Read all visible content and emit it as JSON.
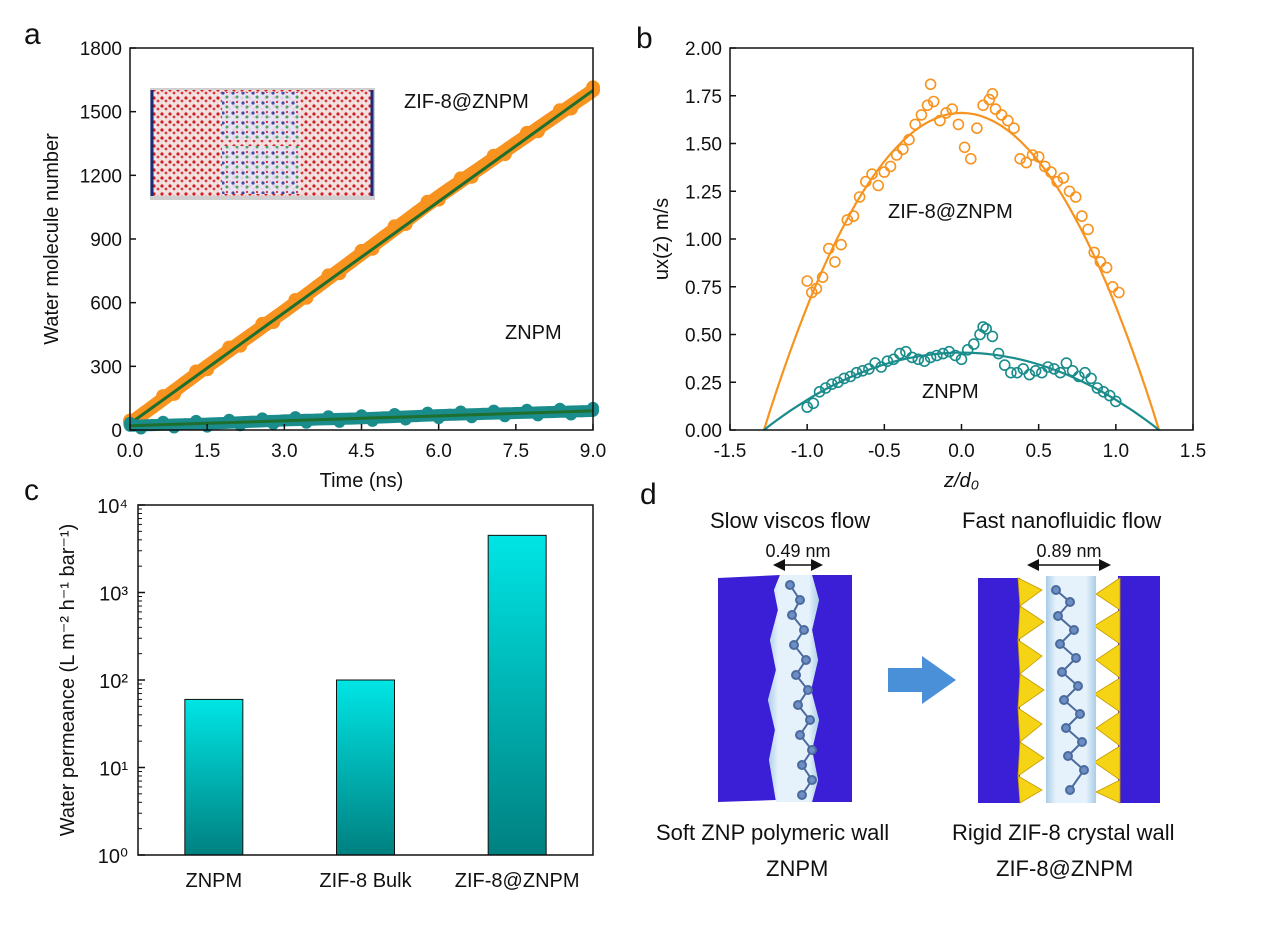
{
  "figure": {
    "panels": [
      "a",
      "b",
      "c",
      "d"
    ]
  },
  "chart_data": [
    {
      "id": "a",
      "type": "line",
      "xlabel": "Time (ns)",
      "ylabel": "Water molecule number",
      "xlim": [
        0,
        9
      ],
      "ylim": [
        0,
        1800
      ],
      "xticks": [
        "0.0",
        "1.5",
        "3.0",
        "4.5",
        "6.0",
        "7.5",
        "9.0"
      ],
      "yticks": [
        "0",
        "300",
        "600",
        "900",
        "1200",
        "1500",
        "1800"
      ],
      "annotations": [
        "ZIF-8@ZNPM",
        "ZNPM"
      ],
      "series": [
        {
          "name": "ZIF-8@ZNPM",
          "color": "#f7931e",
          "x": [
            0,
            1.5,
            3.0,
            4.5,
            6.0,
            7.5,
            9.0
          ],
          "values": [
            30,
            300,
            560,
            830,
            1100,
            1350,
            1600
          ]
        },
        {
          "name": "ZNPM",
          "color": "#1a8c8c",
          "x": [
            0,
            1.5,
            3.0,
            4.5,
            6.0,
            7.5,
            9.0
          ],
          "values": [
            20,
            30,
            45,
            55,
            70,
            80,
            90
          ]
        }
      ],
      "fit_color": "#1e6e2e",
      "inset": "MD simulation box snapshot"
    },
    {
      "id": "b",
      "type": "scatter",
      "xlabel": "z/d₀",
      "ylabel": "ux(z) m/s",
      "xlim": [
        -1.5,
        1.5
      ],
      "ylim": [
        0,
        2.0
      ],
      "xticks": [
        "-1.5",
        "-1.0",
        "-0.5",
        "0.0",
        "0.5",
        "1.0",
        "1.5"
      ],
      "yticks": [
        "0.00",
        "0.25",
        "0.50",
        "0.75",
        "1.00",
        "1.25",
        "1.50",
        "1.75",
        "2.00"
      ],
      "annotations": [
        "ZIF-8@ZNPM",
        "ZNPM"
      ],
      "series": [
        {
          "name": "ZIF-8@ZNPM",
          "color": "#f7931e",
          "fit_peak": 1.66,
          "fit_root": 1.28,
          "points": [
            [
              -1.0,
              0.78
            ],
            [
              -0.97,
              0.72
            ],
            [
              -0.94,
              0.74
            ],
            [
              -0.9,
              0.8
            ],
            [
              -0.86,
              0.95
            ],
            [
              -0.82,
              0.88
            ],
            [
              -0.78,
              0.97
            ],
            [
              -0.74,
              1.1
            ],
            [
              -0.7,
              1.12
            ],
            [
              -0.66,
              1.22
            ],
            [
              -0.62,
              1.3
            ],
            [
              -0.58,
              1.34
            ],
            [
              -0.54,
              1.28
            ],
            [
              -0.5,
              1.35
            ],
            [
              -0.46,
              1.38
            ],
            [
              -0.42,
              1.44
            ],
            [
              -0.38,
              1.47
            ],
            [
              -0.34,
              1.52
            ],
            [
              -0.3,
              1.6
            ],
            [
              -0.26,
              1.65
            ],
            [
              -0.22,
              1.7
            ],
            [
              -0.18,
              1.72
            ],
            [
              -0.14,
              1.62
            ],
            [
              -0.1,
              1.66
            ],
            [
              -0.06,
              1.68
            ],
            [
              -0.02,
              1.6
            ],
            [
              0.02,
              1.48
            ],
            [
              0.06,
              1.42
            ],
            [
              0.1,
              1.58
            ],
            [
              0.14,
              1.7
            ],
            [
              0.18,
              1.73
            ],
            [
              0.22,
              1.68
            ],
            [
              0.26,
              1.65
            ],
            [
              0.3,
              1.62
            ],
            [
              0.34,
              1.58
            ],
            [
              0.38,
              1.42
            ],
            [
              0.42,
              1.4
            ],
            [
              0.46,
              1.44
            ],
            [
              0.5,
              1.43
            ],
            [
              0.54,
              1.38
            ],
            [
              0.58,
              1.35
            ],
            [
              0.62,
              1.3
            ],
            [
              0.66,
              1.32
            ],
            [
              0.7,
              1.25
            ],
            [
              0.74,
              1.22
            ],
            [
              0.78,
              1.12
            ],
            [
              0.82,
              1.05
            ],
            [
              0.86,
              0.93
            ],
            [
              0.9,
              0.88
            ],
            [
              0.94,
              0.85
            ],
            [
              0.98,
              0.75
            ],
            [
              1.02,
              0.72
            ],
            [
              -0.2,
              1.81
            ],
            [
              0.2,
              1.76
            ]
          ]
        },
        {
          "name": "ZNPM",
          "color": "#1a8c8c",
          "fit_peak": 0.405,
          "fit_root": 1.28,
          "points": [
            [
              -1.0,
              0.12
            ],
            [
              -0.96,
              0.14
            ],
            [
              -0.92,
              0.2
            ],
            [
              -0.88,
              0.22
            ],
            [
              -0.84,
              0.24
            ],
            [
              -0.8,
              0.25
            ],
            [
              -0.76,
              0.27
            ],
            [
              -0.72,
              0.28
            ],
            [
              -0.68,
              0.3
            ],
            [
              -0.64,
              0.31
            ],
            [
              -0.6,
              0.32
            ],
            [
              -0.56,
              0.35
            ],
            [
              -0.52,
              0.33
            ],
            [
              -0.48,
              0.36
            ],
            [
              -0.44,
              0.37
            ],
            [
              -0.4,
              0.4
            ],
            [
              -0.36,
              0.41
            ],
            [
              -0.32,
              0.38
            ],
            [
              -0.28,
              0.37
            ],
            [
              -0.24,
              0.36
            ],
            [
              -0.2,
              0.38
            ],
            [
              -0.16,
              0.39
            ],
            [
              -0.12,
              0.4
            ],
            [
              -0.08,
              0.41
            ],
            [
              -0.04,
              0.39
            ],
            [
              0.0,
              0.37
            ],
            [
              0.04,
              0.42
            ],
            [
              0.08,
              0.45
            ],
            [
              0.12,
              0.5
            ],
            [
              0.16,
              0.53
            ],
            [
              0.2,
              0.49
            ],
            [
              0.24,
              0.4
            ],
            [
              0.28,
              0.34
            ],
            [
              0.32,
              0.3
            ],
            [
              0.36,
              0.3
            ],
            [
              0.4,
              0.32
            ],
            [
              0.44,
              0.29
            ],
            [
              0.48,
              0.31
            ],
            [
              0.52,
              0.3
            ],
            [
              0.56,
              0.33
            ],
            [
              0.6,
              0.32
            ],
            [
              0.64,
              0.3
            ],
            [
              0.68,
              0.35
            ],
            [
              0.72,
              0.31
            ],
            [
              0.76,
              0.28
            ],
            [
              0.8,
              0.3
            ],
            [
              0.84,
              0.27
            ],
            [
              0.88,
              0.22
            ],
            [
              0.92,
              0.2
            ],
            [
              0.96,
              0.18
            ],
            [
              1.0,
              0.15
            ],
            [
              0.14,
              0.54
            ]
          ]
        }
      ]
    },
    {
      "id": "c",
      "type": "bar",
      "ylabel": "Water permeance (L m⁻² h⁻¹ bar⁻¹)",
      "yscale": "log",
      "ylim": [
        1,
        10000
      ],
      "yticks": [
        "10⁰",
        "10¹",
        "10²",
        "10³",
        "10⁴"
      ],
      "categories": [
        "ZNPM",
        "ZIF-8 Bulk",
        "ZIF-8@ZNPM"
      ],
      "values": [
        60,
        100,
        4500
      ],
      "bar_color_top": "#00e5e5",
      "bar_color_bottom": "#008080"
    }
  ],
  "panel_d": {
    "left": {
      "title": "Slow viscos flow",
      "width_label": "0.49 nm",
      "caption1": "Soft ZNP polymeric wall",
      "caption2": "ZNPM"
    },
    "right": {
      "title": "Fast nanofluidic flow",
      "width_label": "0.89 nm",
      "caption1": "Rigid ZIF-8 crystal wall",
      "caption2": "ZIF-8@ZNPM"
    },
    "wall_color": "#3b1fd6",
    "crystal_color": "#f5d416",
    "arrow_color": "#4a90d9"
  }
}
